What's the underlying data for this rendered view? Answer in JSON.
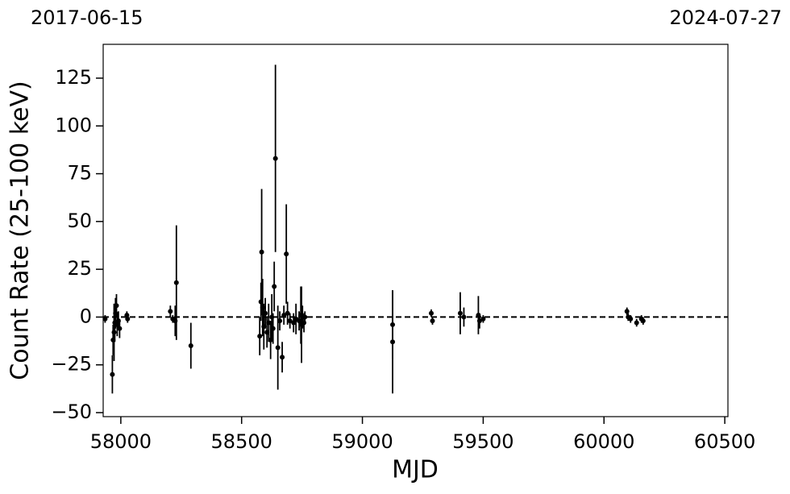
{
  "chart_data": {
    "type": "errorbar-scatter",
    "annotations": [
      "2017-06-15",
      "2024-07-27"
    ],
    "xlabel": "MJD",
    "ylabel": "Count Rate (25-100 keV)",
    "color": "#000000",
    "x": [
      57935,
      57965,
      57968,
      57972,
      57975,
      57978,
      57982,
      57985,
      57990,
      57995,
      58025,
      58028,
      58205,
      58215,
      58225,
      58230,
      58290,
      58575,
      58580,
      58583,
      58587,
      58592,
      58598,
      58605,
      58612,
      58620,
      58625,
      58630,
      58635,
      58640,
      58650,
      58658,
      58668,
      58675,
      58685,
      58690,
      58700,
      58715,
      58725,
      58738,
      58745,
      58748,
      58752,
      58758,
      58762,
      59125,
      59125,
      59285,
      59290,
      59405,
      59420,
      59480,
      59485,
      59500,
      60095,
      60100,
      60110,
      60135,
      60155,
      60162
    ],
    "values": [
      -1,
      -30,
      -12,
      -8,
      -3,
      2,
      6,
      -4,
      -2,
      -6,
      1,
      -1,
      3,
      -1,
      -2,
      18,
      -15,
      -10,
      8,
      34,
      5,
      -5,
      2,
      -8,
      -3,
      -12,
      0,
      -6,
      16,
      83,
      -16,
      -2,
      -21,
      1,
      33,
      2,
      -2,
      -3,
      -1,
      -2,
      1,
      -4,
      0,
      -3,
      0,
      -4,
      -13,
      2,
      -2,
      2,
      0,
      1,
      -2,
      -1,
      3,
      0,
      -1,
      -3,
      -1,
      -2
    ],
    "errors": [
      2,
      10,
      8,
      15,
      10,
      8,
      6,
      6,
      5,
      5,
      2,
      2,
      3,
      2,
      8,
      30,
      12,
      10,
      10,
      33,
      15,
      12,
      8,
      8,
      10,
      10,
      12,
      8,
      13,
      49,
      22,
      5,
      8,
      5,
      26,
      6,
      4,
      5,
      8,
      5,
      15,
      20,
      6,
      5,
      3,
      18,
      27,
      2,
      2,
      11,
      5,
      10,
      4,
      2,
      2,
      2,
      2,
      2,
      2,
      2
    ],
    "reference_line": 0,
    "xlim": [
      57927,
      60513
    ],
    "ylim": [
      -52.1,
      142.7
    ],
    "xticks": [
      58000,
      58500,
      59000,
      59500,
      60000,
      60500
    ],
    "yticks": [
      {
        "value": -50,
        "label": "−50"
      },
      {
        "value": -25,
        "label": "−25"
      },
      0,
      25,
      50,
      75,
      100,
      125
    ]
  }
}
